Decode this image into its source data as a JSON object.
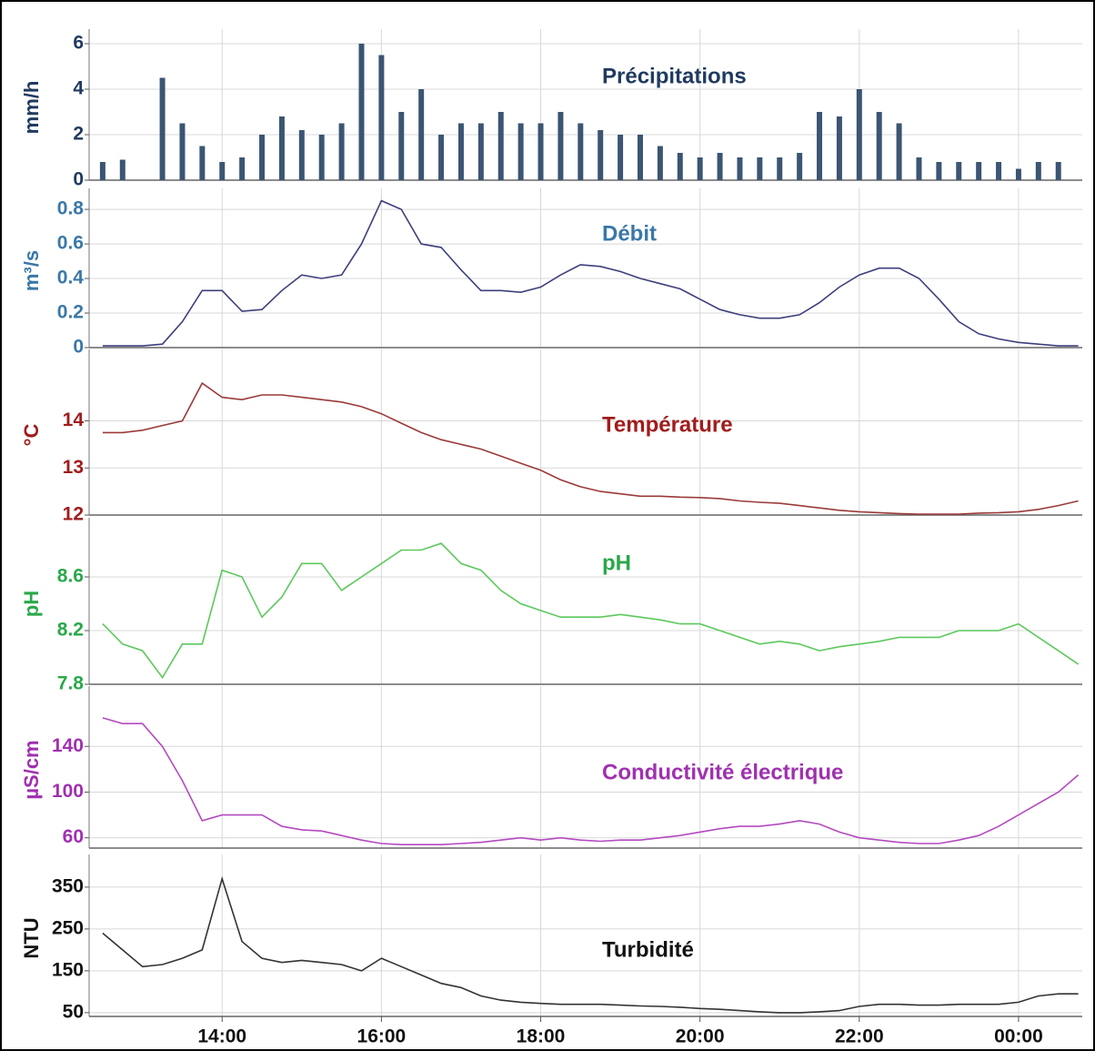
{
  "chart_data": [
    {
      "type": "bar",
      "title": "Précipitations",
      "ylabel": "mm/h",
      "color": "#3b5573",
      "label_color": "#1f3a5f",
      "x": [
        12.5,
        12.75,
        13,
        13.25,
        13.5,
        13.75,
        14,
        14.25,
        14.5,
        14.75,
        15,
        15.25,
        15.5,
        15.75,
        16,
        16.25,
        16.5,
        16.75,
        17,
        17.25,
        17.5,
        17.75,
        18,
        18.25,
        18.5,
        18.75,
        19,
        19.25,
        19.5,
        19.75,
        20,
        20.25,
        20.5,
        20.75,
        21,
        21.25,
        21.5,
        21.75,
        22,
        22.25,
        22.5,
        22.75,
        23,
        23.25,
        23.5,
        23.75,
        24,
        24.25,
        24.5,
        24.75
      ],
      "values": [
        0.8,
        0.9,
        0,
        4.5,
        2.5,
        1.5,
        0.8,
        1,
        2,
        2.8,
        2.2,
        2,
        2.5,
        6,
        5.5,
        3,
        4,
        2,
        2.5,
        2.5,
        3,
        2.5,
        2.5,
        3,
        2.5,
        2.2,
        2,
        2,
        1.5,
        1.2,
        1,
        1.2,
        1,
        1,
        1,
        1.2,
        3,
        2.8,
        4,
        3,
        2.5,
        1,
        0.8,
        0.8,
        0.8,
        0.8,
        0.5,
        0.8,
        0.8,
        0
      ],
      "xlim": [
        12.33,
        24.8
      ],
      "ylim": [
        0,
        6.4
      ],
      "yticks": [
        0,
        2,
        4,
        6
      ]
    },
    {
      "type": "line",
      "title": "Débit",
      "ylabel": "m³/s",
      "color": "#3d3f7c",
      "label_color": "#3a78a8",
      "x": [
        12.5,
        12.75,
        13,
        13.25,
        13.5,
        13.75,
        14,
        14.25,
        14.5,
        14.75,
        15,
        15.25,
        15.5,
        15.75,
        16,
        16.25,
        16.5,
        16.75,
        17,
        17.25,
        17.5,
        17.75,
        18,
        18.25,
        18.5,
        18.75,
        19,
        19.25,
        19.5,
        19.75,
        20,
        20.25,
        20.5,
        20.75,
        21,
        21.25,
        21.5,
        21.75,
        22,
        22.25,
        22.5,
        22.75,
        23,
        23.25,
        23.5,
        23.75,
        24,
        24.25,
        24.5,
        24.75
      ],
      "values": [
        0.01,
        0.01,
        0.01,
        0.02,
        0.15,
        0.33,
        0.33,
        0.21,
        0.22,
        0.33,
        0.42,
        0.4,
        0.42,
        0.6,
        0.85,
        0.8,
        0.6,
        0.58,
        0.45,
        0.33,
        0.33,
        0.32,
        0.35,
        0.42,
        0.48,
        0.47,
        0.44,
        0.4,
        0.37,
        0.34,
        0.28,
        0.22,
        0.19,
        0.17,
        0.17,
        0.19,
        0.26,
        0.35,
        0.42,
        0.46,
        0.46,
        0.4,
        0.28,
        0.15,
        0.08,
        0.05,
        0.03,
        0.02,
        0.01,
        0.01
      ],
      "xlim": [
        12.33,
        24.8
      ],
      "ylim": [
        0,
        0.89
      ],
      "yticks": [
        0,
        0.2,
        0.4,
        0.6,
        0.8
      ]
    },
    {
      "type": "line",
      "title": "Température",
      "ylabel": "°C",
      "color": "#9b3a3a",
      "label_color": "#a01c1c",
      "x": [
        12.5,
        12.75,
        13,
        13.25,
        13.5,
        13.75,
        14,
        14.25,
        14.5,
        14.75,
        15,
        15.25,
        15.5,
        15.75,
        16,
        16.25,
        16.5,
        16.75,
        17,
        17.25,
        17.5,
        17.75,
        18,
        18.25,
        18.5,
        18.75,
        19,
        19.25,
        19.5,
        19.75,
        20,
        20.25,
        20.5,
        20.75,
        21,
        21.25,
        21.5,
        21.75,
        22,
        22.25,
        22.5,
        22.75,
        23,
        23.25,
        23.5,
        23.75,
        24,
        24.25,
        24.5,
        24.75
      ],
      "values": [
        13.75,
        13.75,
        13.8,
        13.9,
        14.0,
        14.8,
        14.5,
        14.45,
        14.55,
        14.55,
        14.5,
        14.45,
        14.4,
        14.3,
        14.15,
        13.95,
        13.75,
        13.6,
        13.5,
        13.4,
        13.25,
        13.1,
        12.95,
        12.75,
        12.6,
        12.5,
        12.45,
        12.4,
        12.4,
        12.38,
        12.37,
        12.35,
        12.3,
        12.27,
        12.25,
        12.2,
        12.15,
        12.1,
        12.07,
        12.05,
        12.03,
        12.02,
        12.02,
        12.02,
        12.04,
        12.05,
        12.07,
        12.12,
        12.2,
        12.3
      ],
      "xlim": [
        12.33,
        24.8
      ],
      "ylim": [
        12,
        15.4
      ],
      "yticks": [
        12,
        13,
        14
      ]
    },
    {
      "type": "line",
      "title": "pH",
      "ylabel": "pH",
      "color": "#5cc85c",
      "label_color": "#2aa84a",
      "x": [
        12.5,
        12.75,
        13,
        13.25,
        13.5,
        13.75,
        14,
        14.25,
        14.5,
        14.75,
        15,
        15.25,
        15.5,
        15.75,
        16,
        16.25,
        16.5,
        16.75,
        17,
        17.25,
        17.5,
        17.75,
        18,
        18.25,
        18.5,
        18.75,
        19,
        19.25,
        19.5,
        19.75,
        20,
        20.25,
        20.5,
        20.75,
        21,
        21.25,
        21.5,
        21.75,
        22,
        22.25,
        22.5,
        22.75,
        23,
        23.25,
        23.5,
        23.75,
        24,
        24.25,
        24.5,
        24.75
      ],
      "values": [
        8.25,
        8.1,
        8.05,
        7.85,
        8.1,
        8.1,
        8.65,
        8.6,
        8.3,
        8.45,
        8.7,
        8.7,
        8.5,
        8.6,
        8.7,
        8.8,
        8.8,
        8.85,
        8.7,
        8.65,
        8.5,
        8.4,
        8.35,
        8.3,
        8.3,
        8.3,
        8.32,
        8.3,
        8.28,
        8.25,
        8.25,
        8.2,
        8.15,
        8.1,
        8.12,
        8.1,
        8.05,
        8.08,
        8.1,
        8.12,
        8.15,
        8.15,
        8.15,
        8.2,
        8.2,
        8.2,
        8.25,
        8.15,
        8.05,
        7.95
      ],
      "xlim": [
        12.33,
        24.8
      ],
      "ylim": [
        7.8,
        9.0
      ],
      "yticks": [
        7.8,
        8.2,
        8.6
      ]
    },
    {
      "type": "line",
      "title": "Conductivité électrique",
      "ylabel": "µS/cm",
      "color": "#b44ac0",
      "label_color": "#a030b0",
      "x": [
        12.5,
        12.75,
        13,
        13.25,
        13.5,
        13.75,
        14,
        14.25,
        14.5,
        14.75,
        15,
        15.25,
        15.5,
        15.75,
        16,
        16.25,
        16.5,
        16.75,
        17,
        17.25,
        17.5,
        17.75,
        18,
        18.25,
        18.5,
        18.75,
        19,
        19.25,
        19.5,
        19.75,
        20,
        20.25,
        20.5,
        20.75,
        21,
        21.25,
        21.5,
        21.75,
        22,
        22.25,
        22.5,
        22.75,
        23,
        23.25,
        23.5,
        23.75,
        24,
        24.25,
        24.5,
        24.75
      ],
      "values": [
        165,
        160,
        160,
        140,
        110,
        75,
        80,
        80,
        80,
        70,
        67,
        66,
        62,
        58,
        55,
        54,
        54,
        54,
        55,
        56,
        58,
        60,
        58,
        60,
        58,
        57,
        58,
        58,
        60,
        62,
        65,
        68,
        70,
        70,
        72,
        75,
        72,
        65,
        60,
        58,
        56,
        55,
        55,
        58,
        62,
        70,
        80,
        90,
        100,
        115
      ],
      "xlim": [
        12.33,
        24.8
      ],
      "ylim": [
        51,
        188
      ],
      "yticks": [
        60,
        100,
        140
      ]
    },
    {
      "type": "line",
      "title": "Turbidité",
      "ylabel": "NTU",
      "color": "#333333",
      "label_color": "#111111",
      "x": [
        12.5,
        12.75,
        13,
        13.25,
        13.5,
        13.75,
        14,
        14.25,
        14.5,
        14.75,
        15,
        15.25,
        15.5,
        15.75,
        16,
        16.25,
        16.5,
        16.75,
        17,
        17.25,
        17.5,
        17.75,
        18,
        18.25,
        18.5,
        18.75,
        19,
        19.25,
        19.5,
        19.75,
        20,
        20.25,
        20.5,
        20.75,
        21,
        21.25,
        21.5,
        21.75,
        22,
        22.25,
        22.5,
        22.75,
        23,
        23.25,
        23.5,
        23.75,
        24,
        24.25,
        24.5,
        24.75
      ],
      "values": [
        240,
        200,
        160,
        165,
        180,
        200,
        370,
        220,
        180,
        170,
        175,
        170,
        165,
        150,
        180,
        160,
        140,
        120,
        110,
        90,
        80,
        75,
        72,
        70,
        70,
        70,
        68,
        66,
        65,
        63,
        60,
        58,
        55,
        52,
        50,
        50,
        52,
        55,
        65,
        70,
        70,
        68,
        68,
        70,
        70,
        70,
        75,
        90,
        95,
        95
      ],
      "xlim": [
        12.33,
        24.8
      ],
      "ylim": [
        41,
        415
      ],
      "yticks": [
        50,
        150,
        250,
        350
      ],
      "xticks": [
        {
          "value": 14,
          "label": "14:00"
        },
        {
          "value": 16,
          "label": "16:00"
        },
        {
          "value": 18,
          "label": "18:00"
        },
        {
          "value": 20,
          "label": "20:00"
        },
        {
          "value": 22,
          "label": "22:00"
        },
        {
          "value": 24,
          "label": "00:00"
        }
      ]
    }
  ]
}
